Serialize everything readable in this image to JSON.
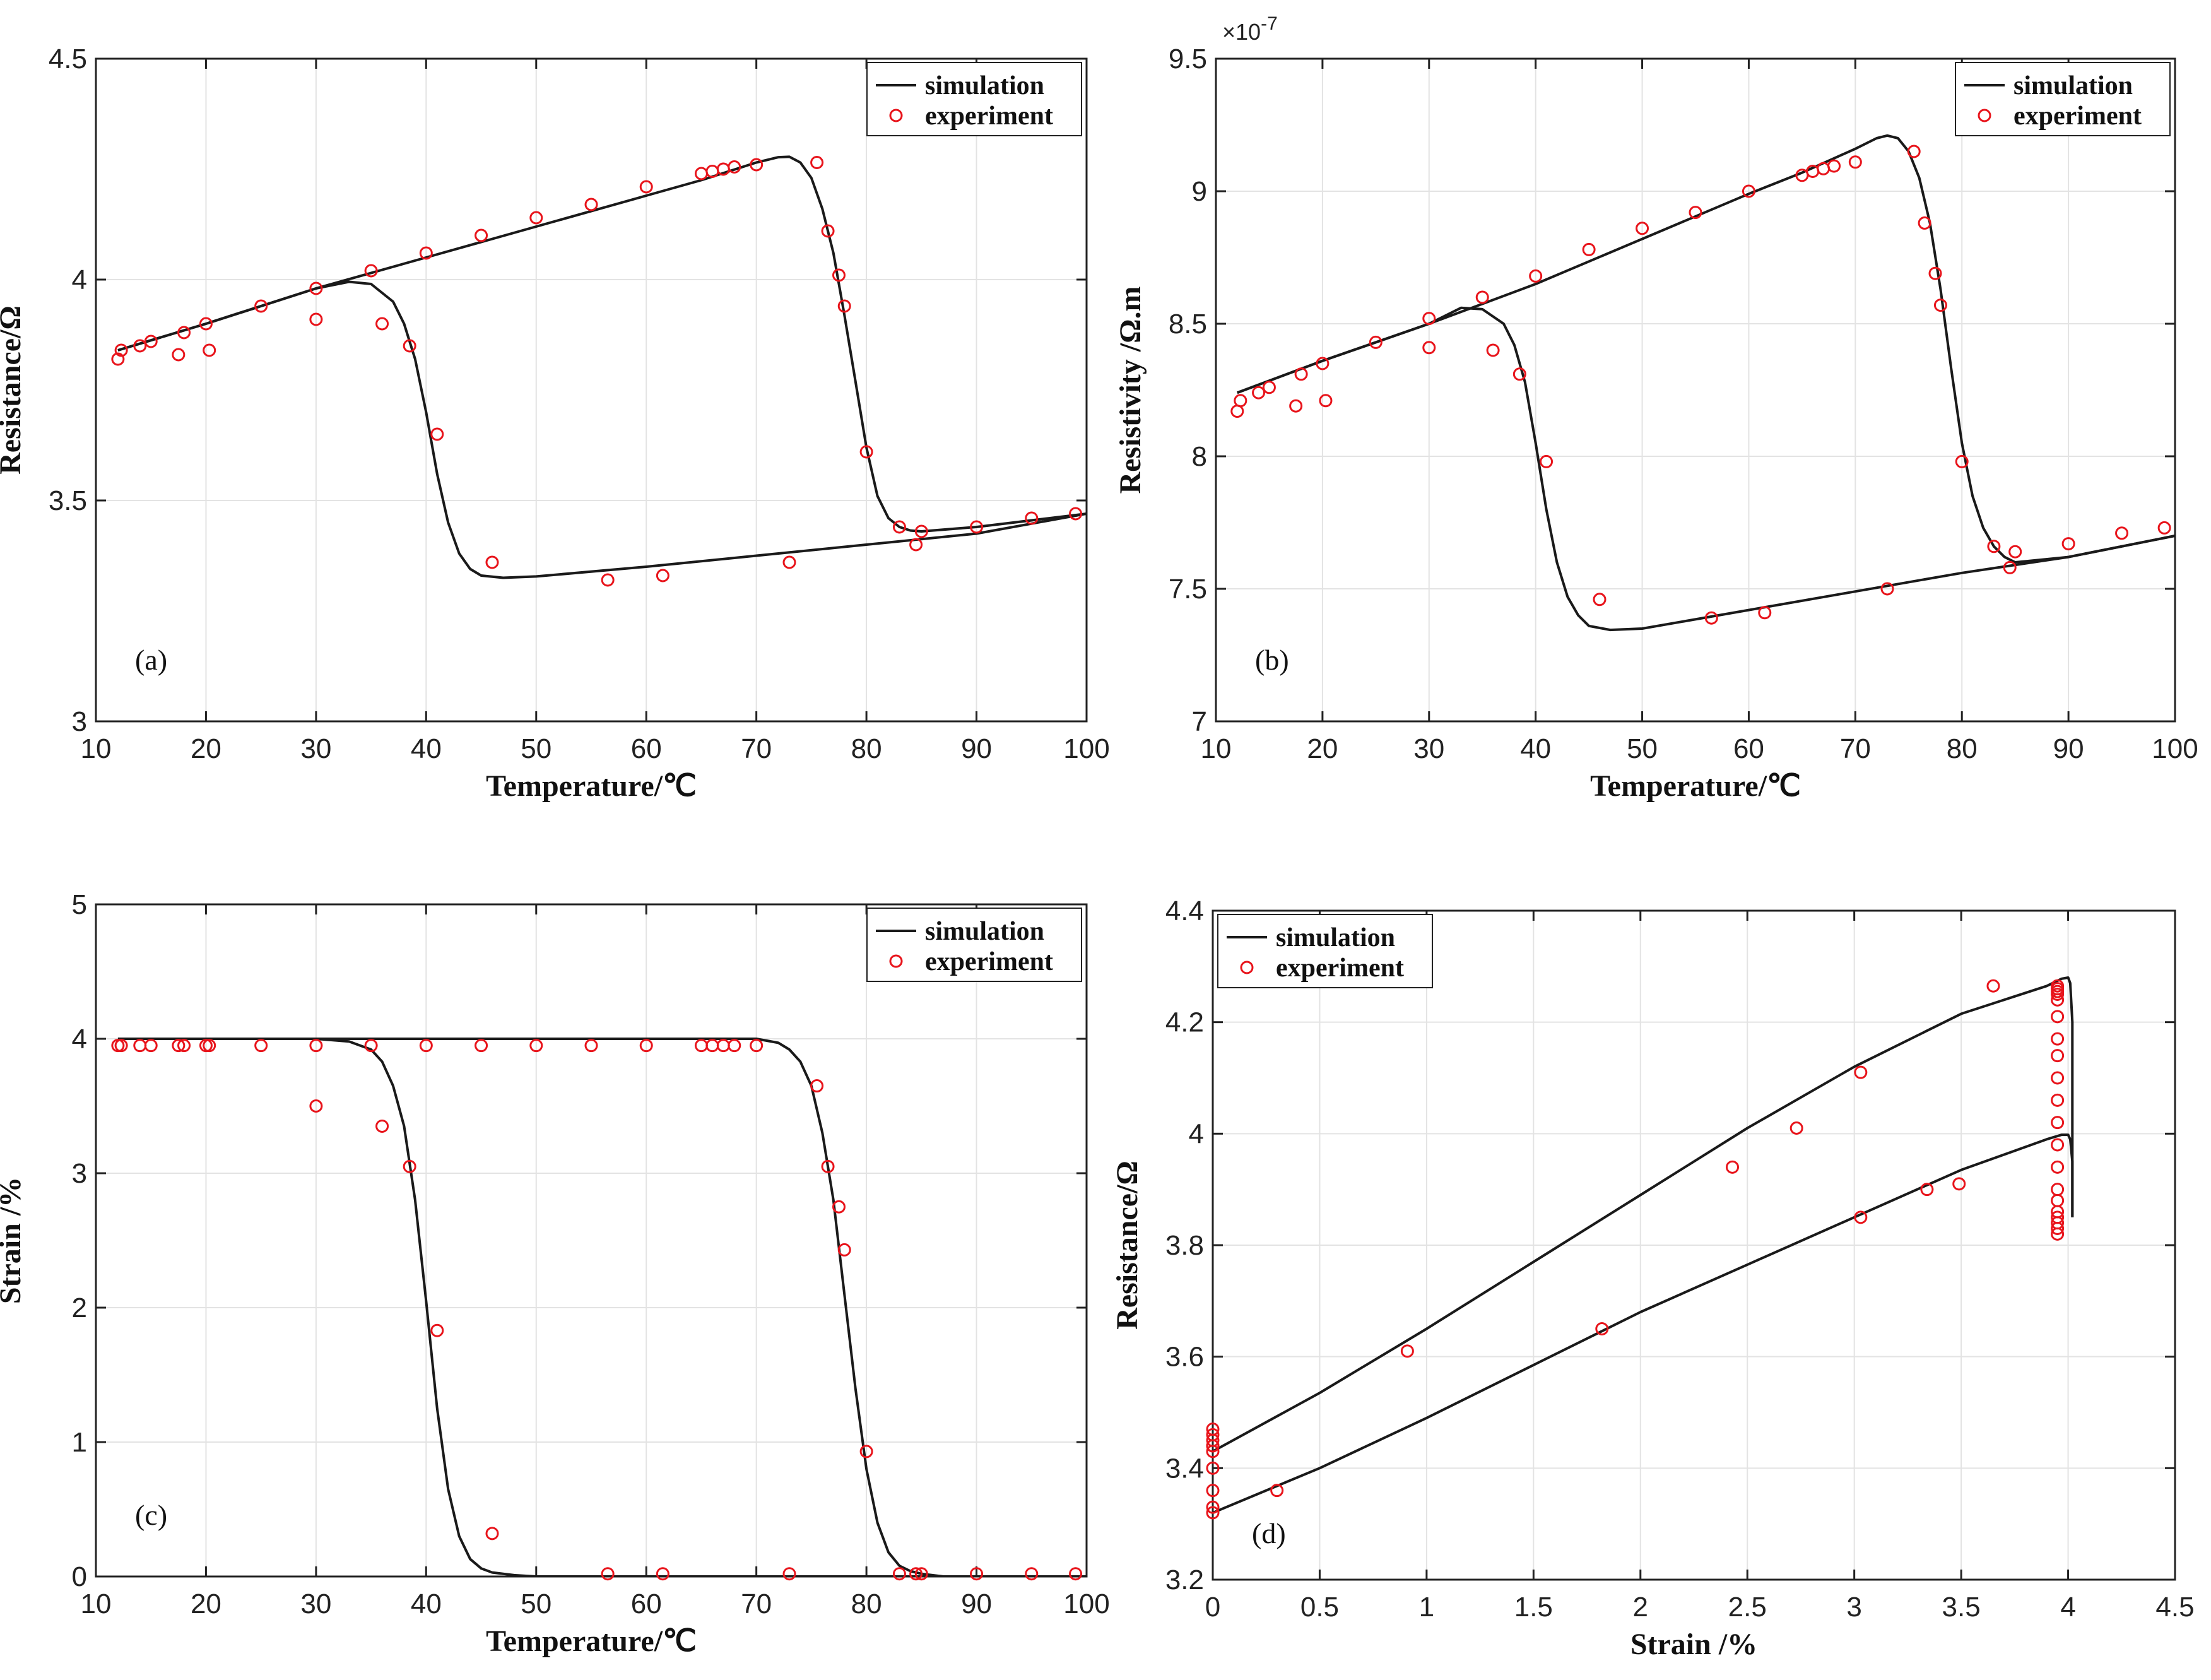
{
  "figure": {
    "background": "#ffffff",
    "sim_color": "#1a1a1a",
    "exp_color": "#e8141b"
  },
  "chart_data": [
    {
      "type": "line",
      "tag": "(a)",
      "xlabel": "Temperature/℃",
      "ylabel": "Resistance/Ω",
      "xlim": [
        10,
        100
      ],
      "ylim": [
        3,
        4.5
      ],
      "xticks": [
        10,
        20,
        30,
        40,
        50,
        60,
        70,
        80,
        90,
        100
      ],
      "yticks": [
        3,
        3.5,
        4,
        4.5
      ],
      "ytick_labels": [
        "3",
        "3.5",
        "4",
        "4.5"
      ],
      "exponent": "",
      "legend": {
        "position": "top-right",
        "entries": [
          "simulation",
          "experiment"
        ]
      },
      "series": [
        {
          "name": "simulation",
          "kind": "line",
          "x": [
            12,
            20,
            30,
            33,
            35,
            37,
            38,
            39,
            40,
            41,
            42,
            43,
            44,
            45,
            47,
            50,
            60,
            70,
            80,
            90,
            100
          ],
          "y": [
            3.84,
            3.9,
            3.98,
            3.995,
            3.99,
            3.95,
            3.9,
            3.82,
            3.7,
            3.56,
            3.45,
            3.38,
            3.345,
            3.33,
            3.325,
            3.328,
            3.35,
            3.375,
            3.4,
            3.425,
            3.47
          ]
        },
        {
          "name": "simulation",
          "kind": "line",
          "x": [
            12,
            20,
            30,
            40,
            50,
            60,
            65,
            70,
            72,
            73,
            74,
            75,
            76,
            77,
            78,
            79,
            80,
            81,
            82,
            83,
            84,
            85,
            90,
            100
          ],
          "y": [
            3.84,
            3.9,
            3.98,
            4.05,
            4.12,
            4.19,
            4.225,
            4.265,
            4.277,
            4.278,
            4.265,
            4.23,
            4.16,
            4.06,
            3.92,
            3.77,
            3.62,
            3.51,
            3.46,
            3.44,
            3.432,
            3.43,
            3.44,
            3.47
          ]
        },
        {
          "name": "experiment",
          "kind": "scatter",
          "x": [
            12,
            12.3,
            14,
            15,
            17.5,
            18,
            20,
            20.3,
            25,
            30,
            30,
            35,
            36,
            38.5,
            40,
            41,
            45,
            46,
            50,
            55,
            56.5,
            60,
            61.5,
            65,
            66,
            67,
            68,
            70,
            73,
            75.5,
            76.5,
            77.5,
            78,
            80,
            83,
            84.5,
            85,
            90,
            95,
            99
          ],
          "y": [
            3.82,
            3.84,
            3.85,
            3.86,
            3.83,
            3.88,
            3.9,
            3.84,
            3.94,
            3.98,
            3.91,
            4.02,
            3.9,
            3.85,
            4.06,
            3.65,
            4.1,
            3.36,
            4.14,
            4.17,
            3.32,
            4.21,
            3.33,
            4.24,
            4.245,
            4.25,
            4.255,
            4.26,
            3.36,
            4.265,
            4.11,
            4.01,
            3.94,
            3.61,
            3.44,
            3.4,
            3.43,
            3.44,
            3.46,
            3.47
          ]
        }
      ]
    },
    {
      "type": "line",
      "tag": "(b)",
      "xlabel": "Temperature/℃",
      "ylabel": "Resistivity /Ω.m",
      "xlim": [
        10,
        100
      ],
      "ylim": [
        7,
        9.5
      ],
      "xticks": [
        10,
        20,
        30,
        40,
        50,
        60,
        70,
        80,
        90,
        100
      ],
      "yticks": [
        7,
        7.5,
        8,
        8.5,
        9,
        9.5
      ],
      "ytick_labels": [
        "7",
        "7.5",
        "8",
        "8.5",
        "9",
        "9.5"
      ],
      "exponent": "×10-7",
      "legend": {
        "position": "top-right",
        "entries": [
          "simulation",
          "experiment"
        ]
      },
      "series": [
        {
          "name": "simulation",
          "kind": "line",
          "x": [
            12,
            20,
            30,
            33,
            35,
            37,
            38,
            39,
            40,
            41,
            42,
            43,
            44,
            45,
            47,
            50,
            60,
            70,
            80,
            90,
            100
          ],
          "y": [
            8.24,
            8.36,
            8.5,
            8.56,
            8.555,
            8.5,
            8.42,
            8.28,
            8.05,
            7.8,
            7.6,
            7.47,
            7.4,
            7.36,
            7.345,
            7.35,
            7.42,
            7.49,
            7.56,
            7.62,
            7.7
          ]
        },
        {
          "name": "simulation",
          "kind": "line",
          "x": [
            12,
            20,
            30,
            40,
            50,
            60,
            65,
            70,
            72,
            73,
            74,
            75,
            76,
            77,
            78,
            79,
            80,
            81,
            82,
            83,
            84,
            85,
            90,
            100
          ],
          "y": [
            8.24,
            8.36,
            8.5,
            8.65,
            8.82,
            8.99,
            9.07,
            9.16,
            9.2,
            9.21,
            9.2,
            9.15,
            9.05,
            8.88,
            8.63,
            8.33,
            8.05,
            7.85,
            7.73,
            7.66,
            7.62,
            7.6,
            7.62,
            7.7
          ]
        },
        {
          "name": "experiment",
          "kind": "scatter",
          "x": [
            12,
            12.3,
            14,
            15,
            17.5,
            18,
            20,
            20.3,
            25,
            30,
            30,
            35,
            36,
            38.5,
            40,
            41,
            45,
            46,
            50,
            55,
            56.5,
            60,
            61.5,
            65,
            66,
            67,
            68,
            70,
            73,
            75.5,
            76.5,
            77.5,
            78,
            80,
            83,
            84.5,
            85,
            90,
            95,
            99
          ],
          "y": [
            8.17,
            8.21,
            8.24,
            8.26,
            8.19,
            8.31,
            8.35,
            8.21,
            8.43,
            8.52,
            8.41,
            8.6,
            8.4,
            8.31,
            8.68,
            7.98,
            8.78,
            7.46,
            8.86,
            8.92,
            7.39,
            9.0,
            7.41,
            9.06,
            9.075,
            9.085,
            9.095,
            9.11,
            7.5,
            9.15,
            8.88,
            8.69,
            8.57,
            7.98,
            7.66,
            7.58,
            7.64,
            7.67,
            7.71,
            7.73
          ]
        }
      ]
    },
    {
      "type": "line",
      "tag": "(c)",
      "xlabel": "Temperature/℃",
      "ylabel": "Strain /%",
      "xlim": [
        10,
        100
      ],
      "ylim": [
        0,
        5
      ],
      "xticks": [
        10,
        20,
        30,
        40,
        50,
        60,
        70,
        80,
        90,
        100
      ],
      "yticks": [
        0,
        1,
        2,
        3,
        4,
        5
      ],
      "ytick_labels": [
        "0",
        "1",
        "2",
        "3",
        "4",
        "5"
      ],
      "exponent": "",
      "legend": {
        "position": "top-right",
        "entries": [
          "simulation",
          "experiment"
        ]
      },
      "series": [
        {
          "name": "simulation",
          "kind": "line",
          "x": [
            12,
            30,
            33,
            35,
            36,
            37,
            38,
            39,
            40,
            41,
            42,
            43,
            44,
            45,
            46,
            48,
            50,
            100
          ],
          "y": [
            4.0,
            4.0,
            3.98,
            3.92,
            3.83,
            3.65,
            3.35,
            2.8,
            2.05,
            1.25,
            0.65,
            0.3,
            0.13,
            0.06,
            0.03,
            0.01,
            0,
            0
          ]
        },
        {
          "name": "simulation",
          "kind": "line",
          "x": [
            12,
            70,
            72,
            73,
            74,
            75,
            76,
            77,
            78,
            79,
            80,
            81,
            82,
            83,
            84,
            85,
            87,
            100
          ],
          "y": [
            4.0,
            4.0,
            3.97,
            3.92,
            3.83,
            3.65,
            3.3,
            2.8,
            2.1,
            1.4,
            0.8,
            0.4,
            0.18,
            0.08,
            0.04,
            0.02,
            0,
            0
          ]
        },
        {
          "name": "experiment",
          "kind": "scatter",
          "x": [
            12,
            12.3,
            14,
            15,
            17.5,
            18,
            20,
            20.3,
            25,
            30,
            30,
            35,
            36,
            38.5,
            40,
            41,
            45,
            46,
            50,
            55,
            56.5,
            60,
            61.5,
            65,
            66,
            67,
            68,
            70,
            73,
            75.5,
            76.5,
            77.5,
            78,
            80,
            83,
            84.5,
            85,
            90,
            95,
            99
          ],
          "y": [
            3.95,
            3.95,
            3.95,
            3.95,
            3.95,
            3.95,
            3.95,
            3.95,
            3.95,
            3.95,
            3.5,
            3.95,
            3.35,
            3.05,
            3.95,
            1.83,
            3.95,
            0.32,
            3.95,
            3.95,
            0.02,
            3.95,
            0.02,
            3.95,
            3.95,
            3.95,
            3.95,
            3.95,
            0.02,
            3.65,
            3.05,
            2.75,
            2.43,
            0.93,
            0.02,
            0.02,
            0.02,
            0.02,
            0.02,
            0.02
          ]
        }
      ]
    },
    {
      "type": "line",
      "tag": "(d)",
      "xlabel": "Strain /%",
      "ylabel": "Resistance/Ω",
      "xlim": [
        0,
        4.5
      ],
      "ylim": [
        3.2,
        4.4
      ],
      "xticks": [
        0,
        0.5,
        1,
        1.5,
        2,
        2.5,
        3,
        3.5,
        4,
        4.5
      ],
      "yticks": [
        3.2,
        3.4,
        3.6,
        3.8,
        4,
        4.2,
        4.4
      ],
      "ytick_labels": [
        "3.2",
        "3.4",
        "3.6",
        "3.8",
        "4",
        "4.2",
        "4.4"
      ],
      "exponent": "",
      "legend": {
        "position": "top-left",
        "entries": [
          "simulation",
          "experiment"
        ]
      },
      "series": [
        {
          "name": "simulation",
          "kind": "line",
          "x": [
            0,
            0.5,
            1,
            1.5,
            2,
            2.5,
            3,
            3.5,
            3.9,
            3.97,
            4.0,
            4.01,
            4.02,
            4.02
          ],
          "y": [
            3.43,
            3.535,
            3.65,
            3.77,
            3.89,
            4.01,
            4.12,
            4.215,
            4.265,
            4.278,
            4.28,
            4.27,
            4.2,
            3.85
          ]
        },
        {
          "name": "simulation",
          "kind": "line",
          "x": [
            0,
            0.5,
            1,
            1.5,
            2,
            2.5,
            3,
            3.5,
            3.9,
            3.97,
            4.0,
            4.01,
            4.02,
            4.02
          ],
          "y": [
            3.32,
            3.4,
            3.49,
            3.585,
            3.68,
            3.765,
            3.85,
            3.935,
            3.99,
            3.998,
            3.998,
            3.99,
            3.95,
            3.85
          ]
        },
        {
          "name": "experiment",
          "kind": "scatter",
          "x": [
            0,
            0,
            0,
            0,
            0,
            0,
            0,
            0,
            0,
            0,
            0.3,
            0.91,
            1.82,
            2.43,
            2.73,
            3.03,
            3.03,
            3.34,
            3.49,
            3.65,
            3.95,
            3.95,
            3.95,
            3.95,
            3.95,
            3.95,
            3.95,
            3.95,
            3.95,
            3.95,
            3.95,
            3.95,
            3.95,
            3.95,
            3.95,
            3.95,
            3.95,
            3.95,
            3.95,
            3.95
          ],
          "y": [
            3.32,
            3.33,
            3.36,
            3.4,
            3.43,
            3.44,
            3.44,
            3.45,
            3.46,
            3.47,
            3.36,
            3.61,
            3.65,
            3.94,
            4.01,
            4.11,
            3.85,
            3.9,
            3.91,
            4.265,
            3.82,
            3.83,
            3.84,
            3.85,
            3.86,
            3.88,
            3.9,
            3.94,
            3.98,
            4.02,
            4.06,
            4.1,
            4.14,
            4.17,
            4.21,
            4.24,
            4.25,
            4.255,
            4.26,
            4.265
          ]
        }
      ]
    }
  ]
}
